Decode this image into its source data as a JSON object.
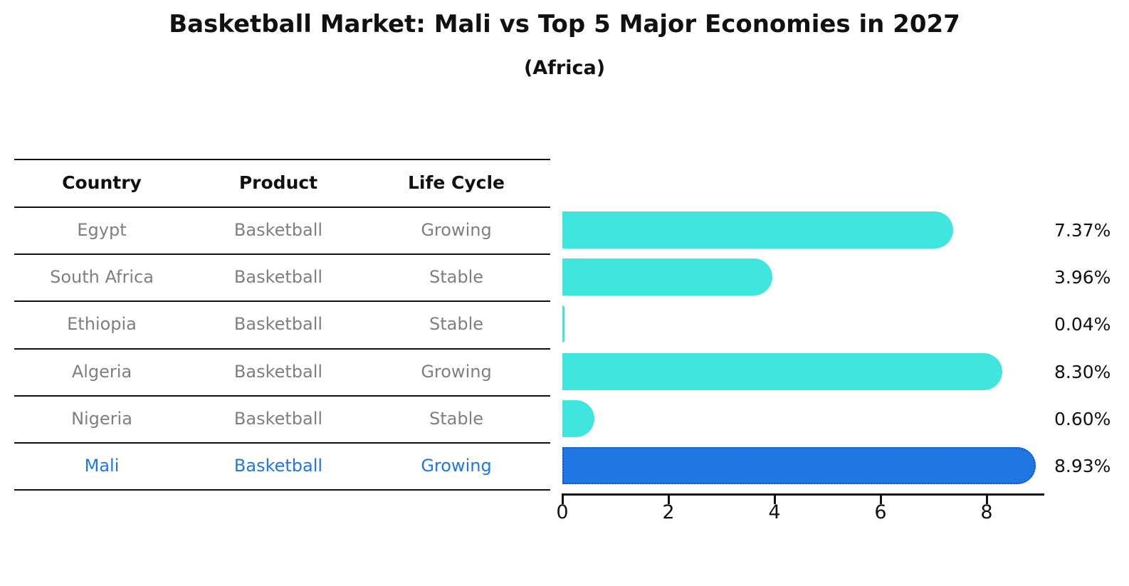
{
  "title": "Basketball Market: Mali vs Top 5 Major Economies in 2027",
  "subtitle": "(Africa)",
  "table": {
    "headers": [
      "Country",
      "Product",
      "Life Cycle"
    ],
    "rows": [
      {
        "country": "Egypt",
        "product": "Basketball",
        "life_cycle": "Growing"
      },
      {
        "country": "South Africa",
        "product": "Basketball",
        "life_cycle": "Stable"
      },
      {
        "country": "Ethiopia",
        "product": "Basketball",
        "life_cycle": "Stable"
      },
      {
        "country": "Algeria",
        "product": "Basketball",
        "life_cycle": "Growing"
      },
      {
        "country": "Nigeria",
        "product": "Basketball",
        "life_cycle": "Stable"
      },
      {
        "country": "Mali",
        "product": "Basketball",
        "life_cycle": "Growing"
      }
    ]
  },
  "chart_data": {
    "type": "bar",
    "orientation": "horizontal",
    "categories": [
      "Egypt",
      "South Africa",
      "Ethiopia",
      "Algeria",
      "Nigeria",
      "Mali"
    ],
    "values": [
      7.37,
      3.96,
      0.04,
      8.3,
      0.6,
      8.93
    ],
    "value_labels": [
      "7.37%",
      "3.96%",
      "0.04%",
      "8.30%",
      "0.60%",
      "8.93%"
    ],
    "highlight_index": 5,
    "xticks": [
      0,
      2,
      4,
      6,
      8
    ],
    "xlim": [
      0,
      9.07
    ],
    "grid": false,
    "legend_position": "none",
    "bar_color": "#40e6de",
    "highlight_color": "#1e77e3",
    "highlight_border_color": "#1257c4",
    "label_color": "#111111",
    "muted_text_color": "#7f7f7f"
  }
}
